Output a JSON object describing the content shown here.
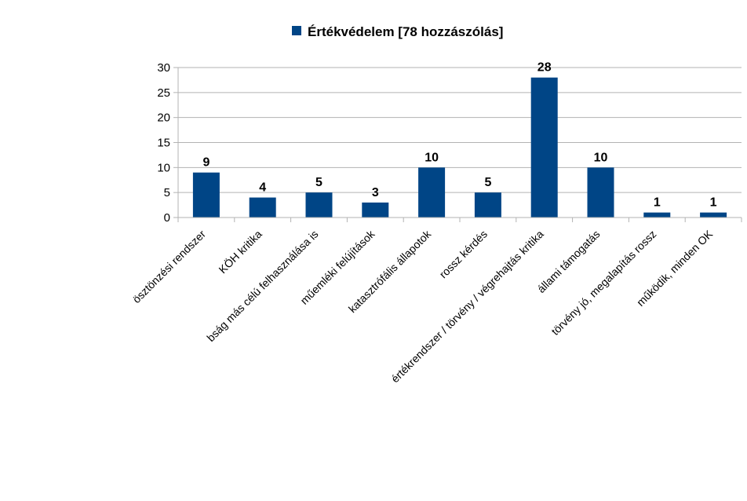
{
  "chart_data": {
    "type": "bar",
    "title": "",
    "xlabel": "",
    "ylabel": "",
    "categories": [
      "ösztönzési rendszer",
      "KÖH kritika",
      "bság más célú felhasználása is",
      "műemléki felújítások",
      "katasztrófális állapotok",
      "rossz kérdés",
      "értékrendszer / törvény / végrehajtás kritika",
      "állami támogatás",
      "törvény jó, megalapítás rossz",
      "működik, minden OK"
    ],
    "series": [
      {
        "name": "Értékvédelem [78 hozzászólás]",
        "values": [
          9,
          4,
          5,
          3,
          10,
          5,
          28,
          10,
          1,
          1
        ]
      }
    ],
    "ylim": [
      0,
      30
    ],
    "yticks": [
      0,
      5,
      10,
      15,
      20,
      25,
      30
    ],
    "grid": true,
    "legend_position": "top-center",
    "colors": {
      "bar": "#004586",
      "grid": "#b3b3b3",
      "axis": "#b3b3b3"
    }
  }
}
